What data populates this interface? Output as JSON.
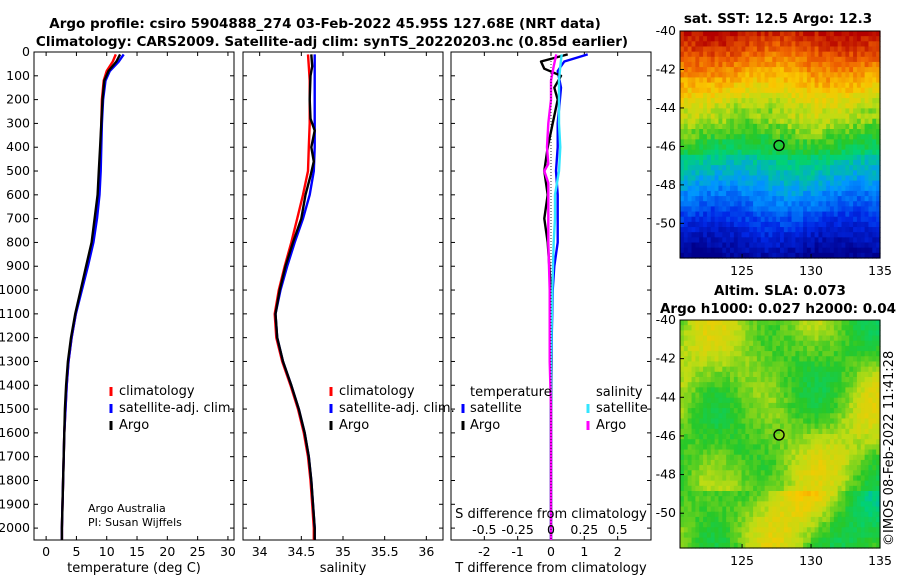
{
  "title_line1": "Argo profile: csiro 5904888_274 03-Feb-2022 45.95S 127.68E (NRT data)",
  "title_line2": "Climatology: CARS2009. Satellite-adj clim: synTS_20220203.nc (0.85d earlier)",
  "watermark": "©IMOS 08-Feb-2022 11:41:28",
  "credit_line1": "Argo Australia",
  "credit_line2": "PI: Susan Wijffels",
  "colors": {
    "climatology": "#ff0000",
    "satellite": "#0000ff",
    "argo": "#000000",
    "sal_satellite": "#33e6ff",
    "sal_argo": "#ff00ff",
    "marker": "#000000"
  },
  "chart_data": [
    {
      "id": "temperature",
      "type": "line",
      "xlabel": "temperature (deg C)",
      "ylabel": "",
      "xlim": [
        -2,
        31
      ],
      "ylim": [
        2050,
        0
      ],
      "xticks": [
        0,
        5,
        10,
        15,
        20,
        25,
        30
      ],
      "xtick_labels": [
        "0",
        "5",
        "10",
        "15",
        "20",
        "25",
        "30"
      ],
      "yticks": [
        0,
        100,
        200,
        300,
        400,
        500,
        600,
        700,
        800,
        900,
        1000,
        1100,
        1200,
        1300,
        1400,
        1500,
        1600,
        1700,
        1800,
        1900,
        2000
      ],
      "legend": [
        "climatology",
        "satellite-adj. clim.",
        "Argo"
      ],
      "series": [
        {
          "name": "climatology",
          "points": [
            [
              11.5,
              10
            ],
            [
              11,
              40
            ],
            [
              10,
              80
            ],
            [
              9.5,
              120
            ],
            [
              9.2,
              200
            ],
            [
              9.1,
              300
            ],
            [
              9.0,
              400
            ],
            [
              8.9,
              500
            ],
            [
              8.6,
              600
            ],
            [
              8.2,
              700
            ],
            [
              7.6,
              800
            ],
            [
              6.8,
              900
            ],
            [
              5.8,
              1000
            ],
            [
              4.9,
              1100
            ],
            [
              4.2,
              1200
            ],
            [
              3.7,
              1300
            ],
            [
              3.4,
              1400
            ],
            [
              3.2,
              1500
            ],
            [
              3.0,
              1600
            ],
            [
              2.9,
              1700
            ],
            [
              2.8,
              1800
            ],
            [
              2.7,
              1900
            ],
            [
              2.6,
              2000
            ],
            [
              2.6,
              2050
            ]
          ]
        },
        {
          "name": "satellite-adj. clim.",
          "points": [
            [
              12.8,
              10
            ],
            [
              12,
              40
            ],
            [
              10.5,
              80
            ],
            [
              9.8,
              120
            ],
            [
              9.4,
              200
            ],
            [
              9.2,
              300
            ],
            [
              9.1,
              400
            ],
            [
              9.0,
              500
            ],
            [
              8.8,
              600
            ],
            [
              8.4,
              700
            ],
            [
              7.8,
              800
            ],
            [
              6.9,
              900
            ],
            [
              5.9,
              1000
            ],
            [
              4.9,
              1100
            ],
            [
              4.2,
              1200
            ],
            [
              3.7,
              1300
            ],
            [
              3.4,
              1400
            ],
            [
              3.2,
              1500
            ],
            [
              3.0,
              1600
            ],
            [
              2.9,
              1700
            ],
            [
              2.8,
              1800
            ],
            [
              2.7,
              1900
            ],
            [
              2.6,
              2000
            ],
            [
              2.6,
              2050
            ]
          ]
        },
        {
          "name": "Argo",
          "points": [
            [
              12.2,
              10
            ],
            [
              11.6,
              40
            ],
            [
              10.3,
              80
            ],
            [
              9.6,
              120
            ],
            [
              9.3,
              200
            ],
            [
              9.1,
              300
            ],
            [
              8.9,
              400
            ],
            [
              8.7,
              500
            ],
            [
              8.5,
              600
            ],
            [
              8.0,
              700
            ],
            [
              7.5,
              800
            ],
            [
              6.6,
              900
            ],
            [
              5.7,
              1000
            ],
            [
              4.8,
              1100
            ],
            [
              4.1,
              1200
            ],
            [
              3.6,
              1300
            ],
            [
              3.3,
              1400
            ],
            [
              3.1,
              1500
            ],
            [
              3.0,
              1600
            ],
            [
              2.9,
              1700
            ],
            [
              2.8,
              1800
            ],
            [
              2.7,
              1900
            ],
            [
              2.6,
              2000
            ],
            [
              2.6,
              2050
            ]
          ]
        }
      ]
    },
    {
      "id": "salinity",
      "type": "line",
      "xlabel": "salinity",
      "xlim": [
        33.8,
        36.2
      ],
      "ylim": [
        2050,
        0
      ],
      "xticks": [
        34,
        34.5,
        35,
        35.5,
        36
      ],
      "xtick_labels": [
        "34",
        "34.5",
        "35",
        "35.5",
        "36"
      ],
      "legend": [
        "climatology",
        "satellite-adj. clim.",
        "Argo"
      ],
      "series": [
        {
          "name": "climatology",
          "points": [
            [
              34.58,
              10
            ],
            [
              34.59,
              60
            ],
            [
              34.6,
              120
            ],
            [
              34.6,
              200
            ],
            [
              34.6,
              300
            ],
            [
              34.59,
              400
            ],
            [
              34.58,
              500
            ],
            [
              34.52,
              600
            ],
            [
              34.45,
              700
            ],
            [
              34.38,
              800
            ],
            [
              34.3,
              900
            ],
            [
              34.23,
              1000
            ],
            [
              34.18,
              1100
            ],
            [
              34.2,
              1200
            ],
            [
              34.27,
              1300
            ],
            [
              34.37,
              1400
            ],
            [
              34.46,
              1500
            ],
            [
              34.53,
              1600
            ],
            [
              34.58,
              1700
            ],
            [
              34.61,
              1800
            ],
            [
              34.63,
              1900
            ],
            [
              34.65,
              2000
            ],
            [
              34.65,
              2050
            ]
          ]
        },
        {
          "name": "satellite-adj. clim.",
          "points": [
            [
              34.66,
              10
            ],
            [
              34.66,
              60
            ],
            [
              34.66,
              120
            ],
            [
              34.66,
              200
            ],
            [
              34.66,
              300
            ],
            [
              34.66,
              400
            ],
            [
              34.65,
              500
            ],
            [
              34.6,
              600
            ],
            [
              34.52,
              700
            ],
            [
              34.42,
              800
            ],
            [
              34.33,
              900
            ],
            [
              34.25,
              1000
            ],
            [
              34.19,
              1100
            ],
            [
              34.21,
              1200
            ],
            [
              34.28,
              1300
            ],
            [
              34.38,
              1400
            ],
            [
              34.47,
              1500
            ],
            [
              34.54,
              1600
            ],
            [
              34.59,
              1700
            ],
            [
              34.62,
              1800
            ],
            [
              34.64,
              1900
            ],
            [
              34.66,
              2000
            ],
            [
              34.66,
              2050
            ]
          ]
        },
        {
          "name": "Argo",
          "points": [
            [
              34.62,
              10
            ],
            [
              34.63,
              60
            ],
            [
              34.61,
              100
            ],
            [
              34.6,
              200
            ],
            [
              34.61,
              280
            ],
            [
              34.66,
              330
            ],
            [
              34.62,
              400
            ],
            [
              34.65,
              460
            ],
            [
              34.61,
              520
            ],
            [
              34.55,
              600
            ],
            [
              34.5,
              700
            ],
            [
              34.4,
              800
            ],
            [
              34.31,
              900
            ],
            [
              34.24,
              1000
            ],
            [
              34.19,
              1100
            ],
            [
              34.21,
              1200
            ],
            [
              34.28,
              1300
            ],
            [
              34.38,
              1400
            ],
            [
              34.47,
              1500
            ],
            [
              34.54,
              1600
            ],
            [
              34.59,
              1700
            ],
            [
              34.62,
              1800
            ],
            [
              34.64,
              1900
            ],
            [
              34.66,
              2000
            ],
            [
              34.66,
              2050
            ]
          ]
        }
      ]
    },
    {
      "id": "differences",
      "type": "line",
      "xlabel": "T difference from climatology",
      "top_axis_label": "S difference from climatology",
      "xlim": [
        -3,
        3
      ],
      "ylim": [
        2050,
        0
      ],
      "xticks": [
        -2,
        -1,
        0,
        1,
        2
      ],
      "xtick_labels": [
        "-2",
        "-1",
        "0",
        "1",
        "2"
      ],
      "top_ticks": [
        -0.5,
        -0.25,
        0,
        0.25,
        0.5
      ],
      "top_tick_labels": [
        "-0.5",
        "-0.25",
        "0",
        "0.25",
        "0.5"
      ],
      "legend_temperature_title": "temperature",
      "legend_salinity_title": "salinity",
      "legend_temperature": [
        "satellite",
        "Argo"
      ],
      "legend_salinity": [
        "satellite",
        "Argo"
      ],
      "series": [
        {
          "name": "T satellite",
          "axis": "T",
          "points": [
            [
              1.1,
              10
            ],
            [
              0.4,
              40
            ],
            [
              0.2,
              80
            ],
            [
              0.3,
              150
            ],
            [
              0.2,
              300
            ],
            [
              0.2,
              400
            ],
            [
              0.15,
              500
            ],
            [
              0.2,
              600
            ],
            [
              0.2,
              700
            ],
            [
              0.2,
              800
            ],
            [
              0.1,
              900
            ],
            [
              0.05,
              1000
            ],
            [
              0.02,
              1200
            ],
            [
              0.0,
              1500
            ],
            [
              0.0,
              2000
            ],
            [
              0.0,
              2050
            ]
          ]
        },
        {
          "name": "T Argo",
          "axis": "T",
          "points": [
            [
              0.5,
              10
            ],
            [
              -0.3,
              40
            ],
            [
              -0.2,
              70
            ],
            [
              0.3,
              100
            ],
            [
              0.1,
              150
            ],
            [
              0.2,
              200
            ],
            [
              0.05,
              300
            ],
            [
              -0.1,
              400
            ],
            [
              -0.2,
              500
            ],
            [
              -0.1,
              600
            ],
            [
              -0.2,
              700
            ],
            [
              -0.1,
              800
            ],
            [
              -0.05,
              900
            ],
            [
              0.0,
              1000
            ],
            [
              0.0,
              1400
            ],
            [
              0.0,
              2000
            ],
            [
              0.0,
              2050
            ]
          ]
        },
        {
          "name": "S satellite",
          "axis": "S",
          "points": [
            [
              0.08,
              10
            ],
            [
              0.07,
              60
            ],
            [
              0.06,
              120
            ],
            [
              0.06,
              200
            ],
            [
              0.06,
              300
            ],
            [
              0.07,
              400
            ],
            [
              0.06,
              500
            ],
            [
              0.03,
              600
            ],
            [
              0.03,
              700
            ],
            [
              0.02,
              800
            ],
            [
              0.01,
              1000
            ],
            [
              0.0,
              1300
            ],
            [
              0.0,
              2000
            ],
            [
              0.0,
              2050
            ]
          ]
        },
        {
          "name": "S Argo",
          "axis": "S",
          "points": [
            [
              0.04,
              10
            ],
            [
              0.02,
              60
            ],
            [
              0.0,
              120
            ],
            [
              0.0,
              200
            ],
            [
              -0.02,
              300
            ],
            [
              -0.03,
              400
            ],
            [
              -0.02,
              470
            ],
            [
              -0.05,
              500
            ],
            [
              -0.02,
              550
            ],
            [
              -0.02,
              700
            ],
            [
              -0.02,
              800
            ],
            [
              -0.01,
              1000
            ],
            [
              -0.01,
              1300
            ],
            [
              0.0,
              1500
            ],
            [
              0.0,
              2000
            ],
            [
              0.0,
              2050
            ]
          ]
        }
      ]
    },
    {
      "id": "sst_map",
      "type": "heatmap",
      "title": "sat. SST: 12.5 Argo: 12.3",
      "xlim": [
        120.5,
        135
      ],
      "ylim": [
        -51.8,
        -40
      ],
      "xticks": [
        125,
        130,
        135
      ],
      "xtick_labels": [
        "125",
        "130",
        "135"
      ],
      "yticks": [
        -40,
        -42,
        -44,
        -46,
        -48,
        -50
      ],
      "ytick_labels": [
        "-40",
        "-42",
        "-44",
        "-46",
        "-48",
        "-50"
      ],
      "marker": {
        "lon": 127.68,
        "lat": -45.95
      }
    },
    {
      "id": "sla_map",
      "type": "heatmap",
      "title_line1": "Altim. SLA: 0.073",
      "title_line2": "Argo h1000: 0.027 h2000: 0.04",
      "xlim": [
        120.5,
        135
      ],
      "ylim": [
        -51.8,
        -40
      ],
      "xticks": [
        125,
        130,
        135
      ],
      "xtick_labels": [
        "125",
        "130",
        "135"
      ],
      "yticks": [
        -40,
        -42,
        -44,
        -46,
        -48,
        -50
      ],
      "ytick_labels": [
        "-40",
        "-42",
        "-44",
        "-46",
        "-48",
        "-50"
      ],
      "marker": {
        "lon": 127.68,
        "lat": -45.95
      }
    }
  ]
}
